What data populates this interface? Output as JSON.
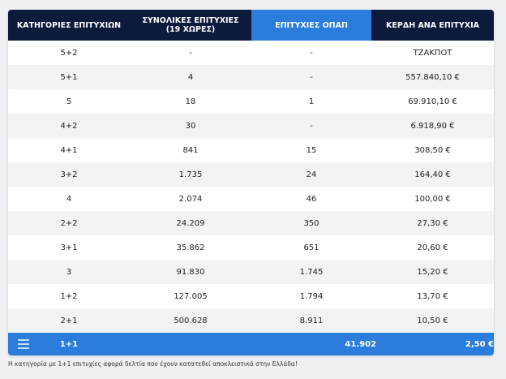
{
  "table": {
    "header": {
      "columns": [
        "ΚΑΤΗΓΟΡΙΕΣ ΕΠΙΤΥΧΙΩΝ",
        "ΣΥΝΟΛΙΚΕΣ ΕΠΙΤΥΧΙΕΣ",
        "ΕΠΙΤΥΧΙΕΣ ΟΠΑΠ",
        "ΚΕΡΔΗ ΑΝΑ ΕΠΙΤΥΧΙΑ"
      ],
      "subtitle": "(19 ΧΩΡΕΣ)"
    },
    "rows": [
      [
        "5+2",
        "-",
        "-",
        "ΤΖΑΚΠΟΤ"
      ],
      [
        "5+1",
        "4",
        "-",
        "557.840,10 €"
      ],
      [
        "5",
        "18",
        "1",
        "69.910,10 €"
      ],
      [
        "4+2",
        "30",
        "-",
        "6.918,90 €"
      ],
      [
        "4+1",
        "841",
        "15",
        "308,50 €"
      ],
      [
        "3+2",
        "1.735",
        "24",
        "164,40 €"
      ],
      [
        "4",
        "2.074",
        "46",
        "100,00 €"
      ],
      [
        "2+2",
        "24.209",
        "350",
        "27,30 €"
      ],
      [
        "3+1",
        "35.862",
        "651",
        "20,60 €"
      ],
      [
        "3",
        "91.830",
        "1.745",
        "15,20 €"
      ],
      [
        "1+2",
        "127.005",
        "1.794",
        "13,70 €"
      ],
      [
        "2+1",
        "500.628",
        "8.911",
        "10,50 €"
      ]
    ],
    "total": {
      "category": "1+1",
      "opap": "41.902",
      "prize": "2,50 €"
    },
    "footnote": "Η κατηγορία με 1+1 επιτυχίες αφορά δελτία που έχουν κατατεθεί αποκλειστικά στην Ελλάδα!"
  }
}
